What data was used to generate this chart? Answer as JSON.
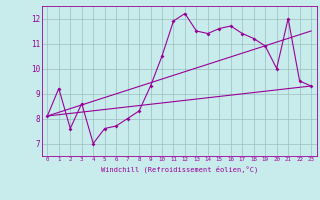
{
  "xlabel": "Windchill (Refroidissement éolien,°C)",
  "bg_color": "#c8ecec",
  "line_color": "#990099",
  "grid_color": "#9bbfbf",
  "xlim": [
    -0.5,
    23.5
  ],
  "ylim": [
    6.5,
    12.5
  ],
  "yticks": [
    7,
    8,
    9,
    10,
    11,
    12
  ],
  "xticks": [
    0,
    1,
    2,
    3,
    4,
    5,
    6,
    7,
    8,
    9,
    10,
    11,
    12,
    13,
    14,
    15,
    16,
    17,
    18,
    19,
    20,
    21,
    22,
    23
  ],
  "line1_x": [
    0,
    1,
    2,
    3,
    4,
    5,
    6,
    7,
    8,
    9,
    10,
    11,
    12,
    13,
    14,
    15,
    16,
    17,
    18,
    19,
    20,
    21,
    22,
    23
  ],
  "line1_y": [
    8.1,
    9.2,
    7.6,
    8.6,
    7.0,
    7.6,
    7.7,
    8.0,
    8.3,
    9.3,
    10.5,
    11.9,
    12.2,
    11.5,
    11.4,
    11.6,
    11.7,
    11.4,
    11.2,
    10.9,
    10.0,
    12.0,
    9.5,
    9.3
  ],
  "line2_x": [
    0,
    23
  ],
  "line2_y": [
    8.1,
    9.3
  ],
  "line3_x": [
    0,
    23
  ],
  "line3_y": [
    8.1,
    11.5
  ]
}
